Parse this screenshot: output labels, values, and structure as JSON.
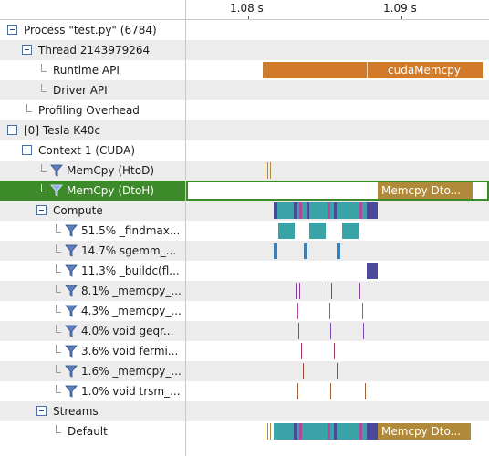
{
  "ruler": {
    "ticks": [
      "1.08 s",
      "1.09 s"
    ]
  },
  "tree": {
    "process": "Process \"test.py\" (6784)",
    "thread": "Thread 2143979264",
    "runtime_api": "Runtime API",
    "driver_api": "Driver API",
    "profiling_overhead": "Profiling Overhead",
    "device": "[0] Tesla K40c",
    "context": "Context 1 (CUDA)",
    "memcpy_htod": "MemCpy (HtoD)",
    "memcpy_dtoh": "MemCpy (DtoH)",
    "compute": "Compute",
    "kernels": [
      "51.5% _findmax...",
      "14.7% sgemm_...",
      "11.3% _buildc(fl...",
      "8.1% _memcpy_...",
      "4.3% _memcpy_...",
      "4.0% void geqr...",
      "3.6% void fermi...",
      "1.6% _memcpy_...",
      "1.0% void trsm_..."
    ],
    "streams": "Streams",
    "default_stream": "Default"
  },
  "timeline": {
    "runtime_bar_label": "cudaMemcpy",
    "dtoh_bar_label": "Memcpy Dto...",
    "default_bar_label": "Memcpy Dto..."
  },
  "colors": {
    "selection": "#3d8a2a",
    "runtime_api": "#d07a2a",
    "memcpy": "#b08a3a",
    "compute_teal": "#3aa3a8",
    "compute_purple": "#4b4a9a"
  }
}
